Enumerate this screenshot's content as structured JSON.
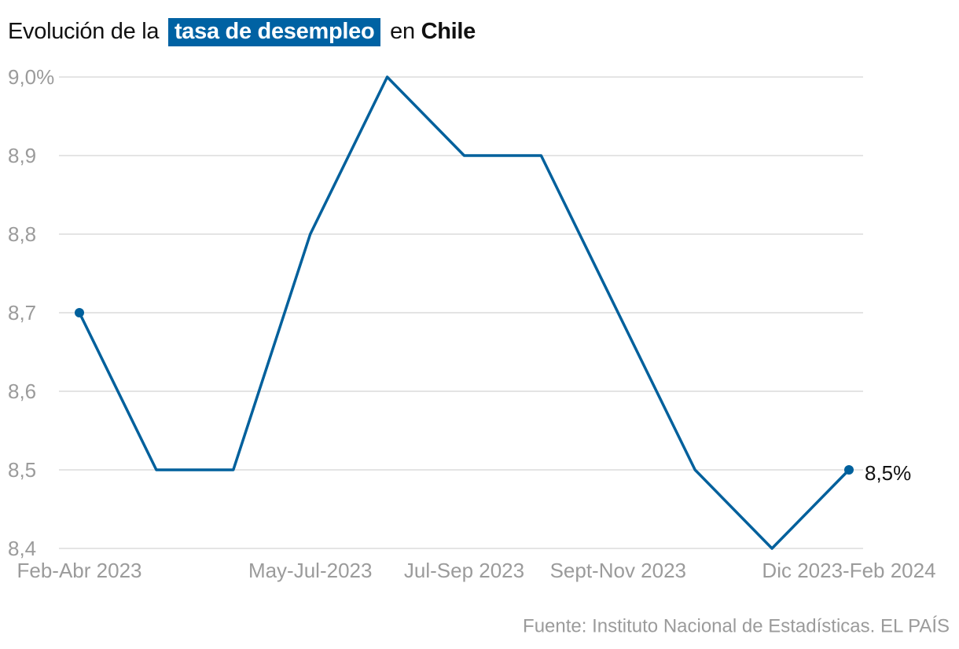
{
  "chart_data": {
    "type": "line",
    "title_parts": [
      "Evolución de la",
      "tasa de desempleo",
      "en",
      "Chile"
    ],
    "categories": [
      "Feb-Abr 2023",
      null,
      null,
      "May-Jul-2023",
      null,
      "Jul-Sep 2023",
      null,
      "Sept-Nov 2023",
      null,
      null,
      "Dic 2023-Feb 2024"
    ],
    "values": [
      8.7,
      8.5,
      8.5,
      8.8,
      9.0,
      8.9,
      8.9,
      8.7,
      8.5,
      8.4,
      8.5
    ],
    "value_labels": [
      null,
      null,
      null,
      null,
      null,
      null,
      null,
      null,
      null,
      null,
      "8,5%"
    ],
    "color": "#00609c",
    "ylim": [
      8.4,
      9.0
    ],
    "yticks": [
      {
        "value": 8.4,
        "label": "8,4"
      },
      {
        "value": 8.5,
        "label": "8,5"
      },
      {
        "value": 8.6,
        "label": "8,6"
      },
      {
        "value": 8.7,
        "label": "8,7"
      },
      {
        "value": 8.8,
        "label": "8,8"
      },
      {
        "value": 8.9,
        "label": "8,9"
      },
      {
        "value": 9.0,
        "label": "9,0%"
      }
    ],
    "grid": true,
    "source": "Fuente: Instituto Nacional de Estadísticas. EL PAÍS"
  }
}
